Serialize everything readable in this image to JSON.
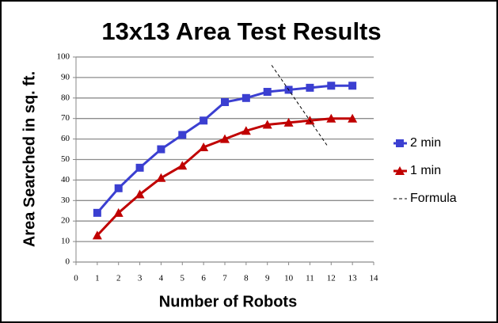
{
  "chart_data": {
    "type": "line",
    "title": "13x13 Area Test Results",
    "xlabel": "Number of Robots",
    "ylabel": "Area Searched in sq. ft.",
    "x": [
      1,
      2,
      3,
      4,
      5,
      6,
      7,
      8,
      9,
      10,
      11,
      12,
      13
    ],
    "series": [
      {
        "name": "2 min",
        "color": "#3b3fd1",
        "marker": "square",
        "values": [
          24,
          36,
          46,
          55,
          62,
          69,
          78,
          80,
          83,
          84,
          85,
          86,
          86
        ]
      },
      {
        "name": "1 min",
        "color": "#c00000",
        "marker": "triangle",
        "values": [
          13,
          24,
          33,
          41,
          47,
          56,
          60,
          64,
          67,
          68,
          69,
          70,
          70
        ]
      },
      {
        "name": "Formula",
        "color": "#000000",
        "dashed": true,
        "x": [
          9.2,
          11.8
        ],
        "values": [
          96,
          57
        ]
      }
    ],
    "xlim": [
      0,
      14
    ],
    "xticks": [
      0,
      1,
      2,
      3,
      4,
      5,
      6,
      7,
      8,
      9,
      10,
      11,
      12,
      13,
      14
    ],
    "ylim": [
      0,
      100
    ],
    "yticks": [
      0,
      10,
      20,
      30,
      40,
      50,
      60,
      70,
      80,
      90,
      100
    ],
    "grid": true,
    "legend": "right"
  }
}
